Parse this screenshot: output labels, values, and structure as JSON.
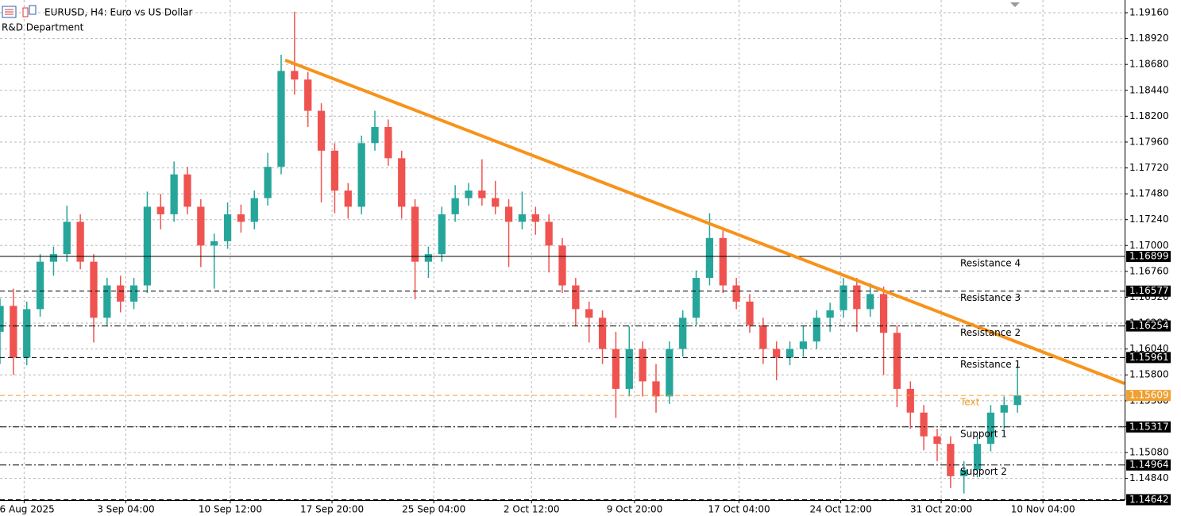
{
  "chart_data": {
    "type": "candlestick",
    "title": "EURUSD, H4:  Euro vs US Dollar",
    "subtitle": "R&D Department",
    "up_color": "#26a69a",
    "down_color": "#ef5350",
    "grid": true,
    "xlim": [
      0,
      84
    ],
    "ylim": [
      1.14638,
      1.19278
    ],
    "yticks": [
      {
        "value": 1.1916,
        "label": "1.19160"
      },
      {
        "value": 1.1892,
        "label": "1.18920"
      },
      {
        "value": 1.1868,
        "label": "1.18680"
      },
      {
        "value": 1.1844,
        "label": "1.18440"
      },
      {
        "value": 1.182,
        "label": "1.18200"
      },
      {
        "value": 1.1796,
        "label": "1.17960"
      },
      {
        "value": 1.1772,
        "label": "1.17720"
      },
      {
        "value": 1.1748,
        "label": "1.17480"
      },
      {
        "value": 1.1724,
        "label": "1.17240"
      },
      {
        "value": 1.17,
        "label": "1.17000"
      },
      {
        "value": 1.1676,
        "label": "1.16760"
      },
      {
        "value": 1.1652,
        "label": "1.16520"
      },
      {
        "value": 1.1628,
        "label": "1.16280"
      },
      {
        "value": 1.1604,
        "label": "1.16040"
      },
      {
        "value": 1.158,
        "label": "1.15800"
      },
      {
        "value": 1.1556,
        "label": "1.15560"
      },
      {
        "value": 1.1532,
        "label": "1.15320"
      },
      {
        "value": 1.1508,
        "label": "1.15080"
      },
      {
        "value": 1.1484,
        "label": "1.14840"
      }
    ],
    "xticks": [
      {
        "value": 1.8,
        "label": "26 Aug 2025"
      },
      {
        "value": 9.4,
        "label": "3 Sep 04:00"
      },
      {
        "value": 17.2,
        "label": "10 Sep 12:00"
      },
      {
        "value": 24.8,
        "label": "17 Sep 20:00"
      },
      {
        "value": 32.4,
        "label": "25 Sep 04:00"
      },
      {
        "value": 39.7,
        "label": "2 Oct 12:00"
      },
      {
        "value": 47.4,
        "label": "9 Oct 20:00"
      },
      {
        "value": 55.2,
        "label": "17 Oct 04:00"
      },
      {
        "value": 62.8,
        "label": "24 Oct 12:00"
      },
      {
        "value": 70.3,
        "label": "31 Oct 20:00"
      },
      {
        "value": 77.9,
        "label": "10 Nov 04:00"
      }
    ],
    "x": [
      0,
      1,
      2,
      3,
      4,
      5,
      6,
      7,
      8,
      9,
      10,
      11,
      12,
      13,
      14,
      15,
      16,
      17,
      18,
      19,
      20,
      21,
      22,
      23,
      24,
      25,
      26,
      27,
      28,
      29,
      30,
      31,
      32,
      33,
      34,
      35,
      36,
      37,
      38,
      39,
      40,
      41,
      42,
      43,
      44,
      45,
      46,
      47,
      48,
      49,
      50,
      51,
      52,
      53,
      54,
      55,
      56,
      57,
      58,
      59,
      60,
      61,
      62,
      63,
      64,
      65,
      66,
      67,
      68,
      69,
      70,
      71,
      72,
      73,
      74,
      75,
      76
    ],
    "candles": [
      [
        1.162,
        1.1651,
        1.159,
        1.1644
      ],
      [
        1.1644,
        1.166,
        1.158,
        1.1596
      ],
      [
        1.1596,
        1.1648,
        1.1589,
        1.1641
      ],
      [
        1.1641,
        1.1692,
        1.1634,
        1.1685
      ],
      [
        1.1685,
        1.1699,
        1.1672,
        1.1692
      ],
      [
        1.1692,
        1.1737,
        1.1685,
        1.1722
      ],
      [
        1.1722,
        1.1729,
        1.1678,
        1.1685
      ],
      [
        1.1685,
        1.1692,
        1.161,
        1.1633
      ],
      [
        1.1633,
        1.167,
        1.1626,
        1.1663
      ],
      [
        1.1663,
        1.1672,
        1.1638,
        1.1648
      ],
      [
        1.1648,
        1.167,
        1.1641,
        1.1663
      ],
      [
        1.1663,
        1.175,
        1.1656,
        1.1736
      ],
      [
        1.1736,
        1.1748,
        1.1715,
        1.1729
      ],
      [
        1.1729,
        1.1778,
        1.1722,
        1.1766
      ],
      [
        1.1766,
        1.1773,
        1.1729,
        1.1736
      ],
      [
        1.1736,
        1.1743,
        1.168,
        1.17
      ],
      [
        1.17,
        1.1711,
        1.166,
        1.1704
      ],
      [
        1.1704,
        1.174,
        1.1697,
        1.1729
      ],
      [
        1.1729,
        1.1738,
        1.1712,
        1.1722
      ],
      [
        1.1722,
        1.1751,
        1.1715,
        1.1744
      ],
      [
        1.1744,
        1.1786,
        1.1737,
        1.1773
      ],
      [
        1.1773,
        1.1877,
        1.1766,
        1.1862
      ],
      [
        1.1862,
        1.1917,
        1.184,
        1.1854
      ],
      [
        1.1854,
        1.1861,
        1.181,
        1.1825
      ],
      [
        1.1825,
        1.1832,
        1.174,
        1.1788
      ],
      [
        1.1788,
        1.1795,
        1.173,
        1.1751
      ],
      [
        1.1751,
        1.1758,
        1.1725,
        1.1736
      ],
      [
        1.1736,
        1.1802,
        1.1729,
        1.1795
      ],
      [
        1.1795,
        1.1825,
        1.1788,
        1.181
      ],
      [
        1.181,
        1.1817,
        1.1774,
        1.1781
      ],
      [
        1.1781,
        1.1788,
        1.1725,
        1.1736
      ],
      [
        1.1736,
        1.1743,
        1.165,
        1.1685
      ],
      [
        1.1685,
        1.1699,
        1.167,
        1.1692
      ],
      [
        1.1692,
        1.1736,
        1.1685,
        1.1729
      ],
      [
        1.1729,
        1.1756,
        1.1722,
        1.1744
      ],
      [
        1.1744,
        1.1758,
        1.1737,
        1.1751
      ],
      [
        1.1751,
        1.178,
        1.1737,
        1.1744
      ],
      [
        1.1744,
        1.176,
        1.1729,
        1.1736
      ],
      [
        1.1736,
        1.1743,
        1.168,
        1.1722
      ],
      [
        1.1722,
        1.175,
        1.1715,
        1.1729
      ],
      [
        1.1729,
        1.1736,
        1.171,
        1.1722
      ],
      [
        1.1722,
        1.1729,
        1.1675,
        1.17
      ],
      [
        1.17,
        1.1707,
        1.1656,
        1.1663
      ],
      [
        1.1663,
        1.167,
        1.1625,
        1.1641
      ],
      [
        1.1641,
        1.1648,
        1.161,
        1.1633
      ],
      [
        1.1633,
        1.164,
        1.159,
        1.1604
      ],
      [
        1.1604,
        1.162,
        1.154,
        1.1567
      ],
      [
        1.1567,
        1.1625,
        1.156,
        1.1604
      ],
      [
        1.1604,
        1.1611,
        1.156,
        1.1574
      ],
      [
        1.1574,
        1.159,
        1.1545,
        1.156
      ],
      [
        1.156,
        1.1611,
        1.1553,
        1.1604
      ],
      [
        1.1604,
        1.164,
        1.1597,
        1.1633
      ],
      [
        1.1633,
        1.1677,
        1.1626,
        1.167
      ],
      [
        1.167,
        1.173,
        1.1663,
        1.1707
      ],
      [
        1.1707,
        1.1714,
        1.1656,
        1.1663
      ],
      [
        1.1663,
        1.167,
        1.1641,
        1.1648
      ],
      [
        1.1648,
        1.1655,
        1.1619,
        1.1626
      ],
      [
        1.1626,
        1.1633,
        1.159,
        1.1604
      ],
      [
        1.1604,
        1.1611,
        1.1575,
        1.1596
      ],
      [
        1.1596,
        1.1611,
        1.1589,
        1.1604
      ],
      [
        1.1604,
        1.1625,
        1.1597,
        1.1611
      ],
      [
        1.1611,
        1.164,
        1.1604,
        1.1633
      ],
      [
        1.1633,
        1.1647,
        1.162,
        1.164
      ],
      [
        1.164,
        1.167,
        1.1633,
        1.1663
      ],
      [
        1.1663,
        1.167,
        1.162,
        1.1641
      ],
      [
        1.1641,
        1.1665,
        1.1634,
        1.1655
      ],
      [
        1.1655,
        1.1662,
        1.158,
        1.1619
      ],
      [
        1.1619,
        1.1626,
        1.155,
        1.1567
      ],
      [
        1.1567,
        1.1574,
        1.153,
        1.1545
      ],
      [
        1.1545,
        1.1552,
        1.151,
        1.1523
      ],
      [
        1.1523,
        1.153,
        1.15,
        1.1516
      ],
      [
        1.1516,
        1.1523,
        1.1475,
        1.1486
      ],
      [
        1.1486,
        1.15,
        1.147,
        1.1492
      ],
      [
        1.1492,
        1.1523,
        1.1485,
        1.1516
      ],
      [
        1.1516,
        1.1552,
        1.1509,
        1.1545
      ],
      [
        1.1545,
        1.156,
        1.153,
        1.1552
      ],
      [
        1.1552,
        1.159,
        1.1545,
        1.1561
      ]
    ],
    "levels": [
      {
        "name": "Resistance 4",
        "value": 1.16899,
        "style": "solid",
        "color": "#000000"
      },
      {
        "name": "Resistance 3",
        "value": 1.16577,
        "style": "dashed",
        "color": "#000000"
      },
      {
        "name": "Resistance 2",
        "value": 1.16254,
        "style": "dashdot",
        "color": "#000000"
      },
      {
        "name": "Resistance 1",
        "value": 1.15961,
        "style": "dashed",
        "color": "#000000"
      },
      {
        "name": "Text",
        "value": 1.15609,
        "style": "dashed",
        "color": "#f0a030"
      },
      {
        "name": "Support 1",
        "value": 1.15317,
        "style": "dashdot",
        "color": "#000000"
      },
      {
        "name": "Support 2",
        "value": 1.14964,
        "style": "dashdot",
        "color": "#000000"
      },
      {
        "value": 1.14642,
        "style": "dashed",
        "color": "#000000"
      }
    ],
    "trendline": {
      "x": [
        21.3,
        84
      ],
      "values": [
        1.1872,
        1.1572
      ],
      "color": "#f7931a"
    }
  }
}
